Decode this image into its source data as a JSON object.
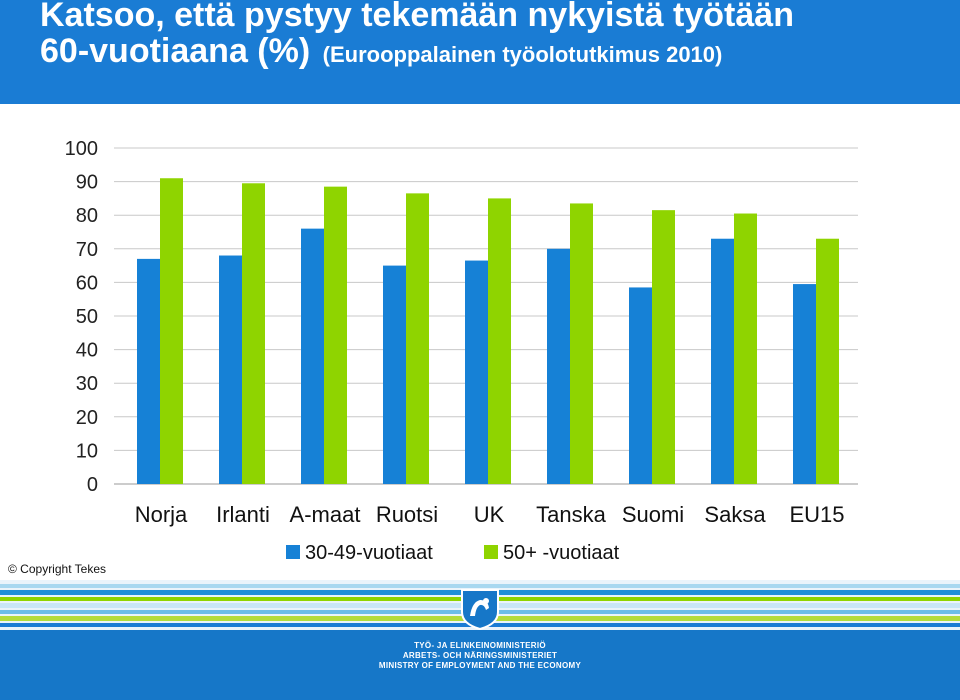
{
  "header": {
    "title_line1": "Katsoo, että pystyy tekemään nykyistä työtään",
    "title_line2_main": "60-vuotiaana (%)",
    "title_line2_sub": "(Eurooppalainen työolotutkimus 2010)"
  },
  "colors": {
    "header_bg": "#1a7cd4",
    "series_1": "#1681d6",
    "series_2": "#8fd400",
    "footer_bg": "#1677c8"
  },
  "chart_data": {
    "type": "bar",
    "title": "",
    "xlabel": "",
    "ylabel": "",
    "categories": [
      "Norja",
      "Irlanti",
      "A-maat",
      "Ruotsi",
      "UK",
      "Tanska",
      "Suomi",
      "Saksa",
      "EU15"
    ],
    "series": [
      {
        "name": "30-49-vuotiaat",
        "values": [
          67,
          68,
          76,
          65,
          66.5,
          70,
          58.5,
          73,
          59.5
        ]
      },
      {
        "name": "50+ -vuotiaat",
        "values": [
          91,
          89.5,
          88.5,
          86.5,
          85,
          83.5,
          81.5,
          80.5,
          73
        ]
      }
    ],
    "ylim": [
      0,
      100
    ],
    "yticks": [
      0,
      10,
      20,
      30,
      40,
      50,
      60,
      70,
      80,
      90,
      100
    ],
    "grid": true,
    "legend": "bottom"
  },
  "copyright": "© Copyright Tekes",
  "footer": {
    "ministry_fi": "TYÖ- JA ELINKEINOMINISTERIÖ",
    "ministry_sv": "ARBETS- OCH NÄRINGSMINISTERIET",
    "ministry_en": "MINISTRY OF EMPLOYMENT AND THE ECONOMY",
    "crest_icon": "finnish-lion-crest-icon"
  }
}
